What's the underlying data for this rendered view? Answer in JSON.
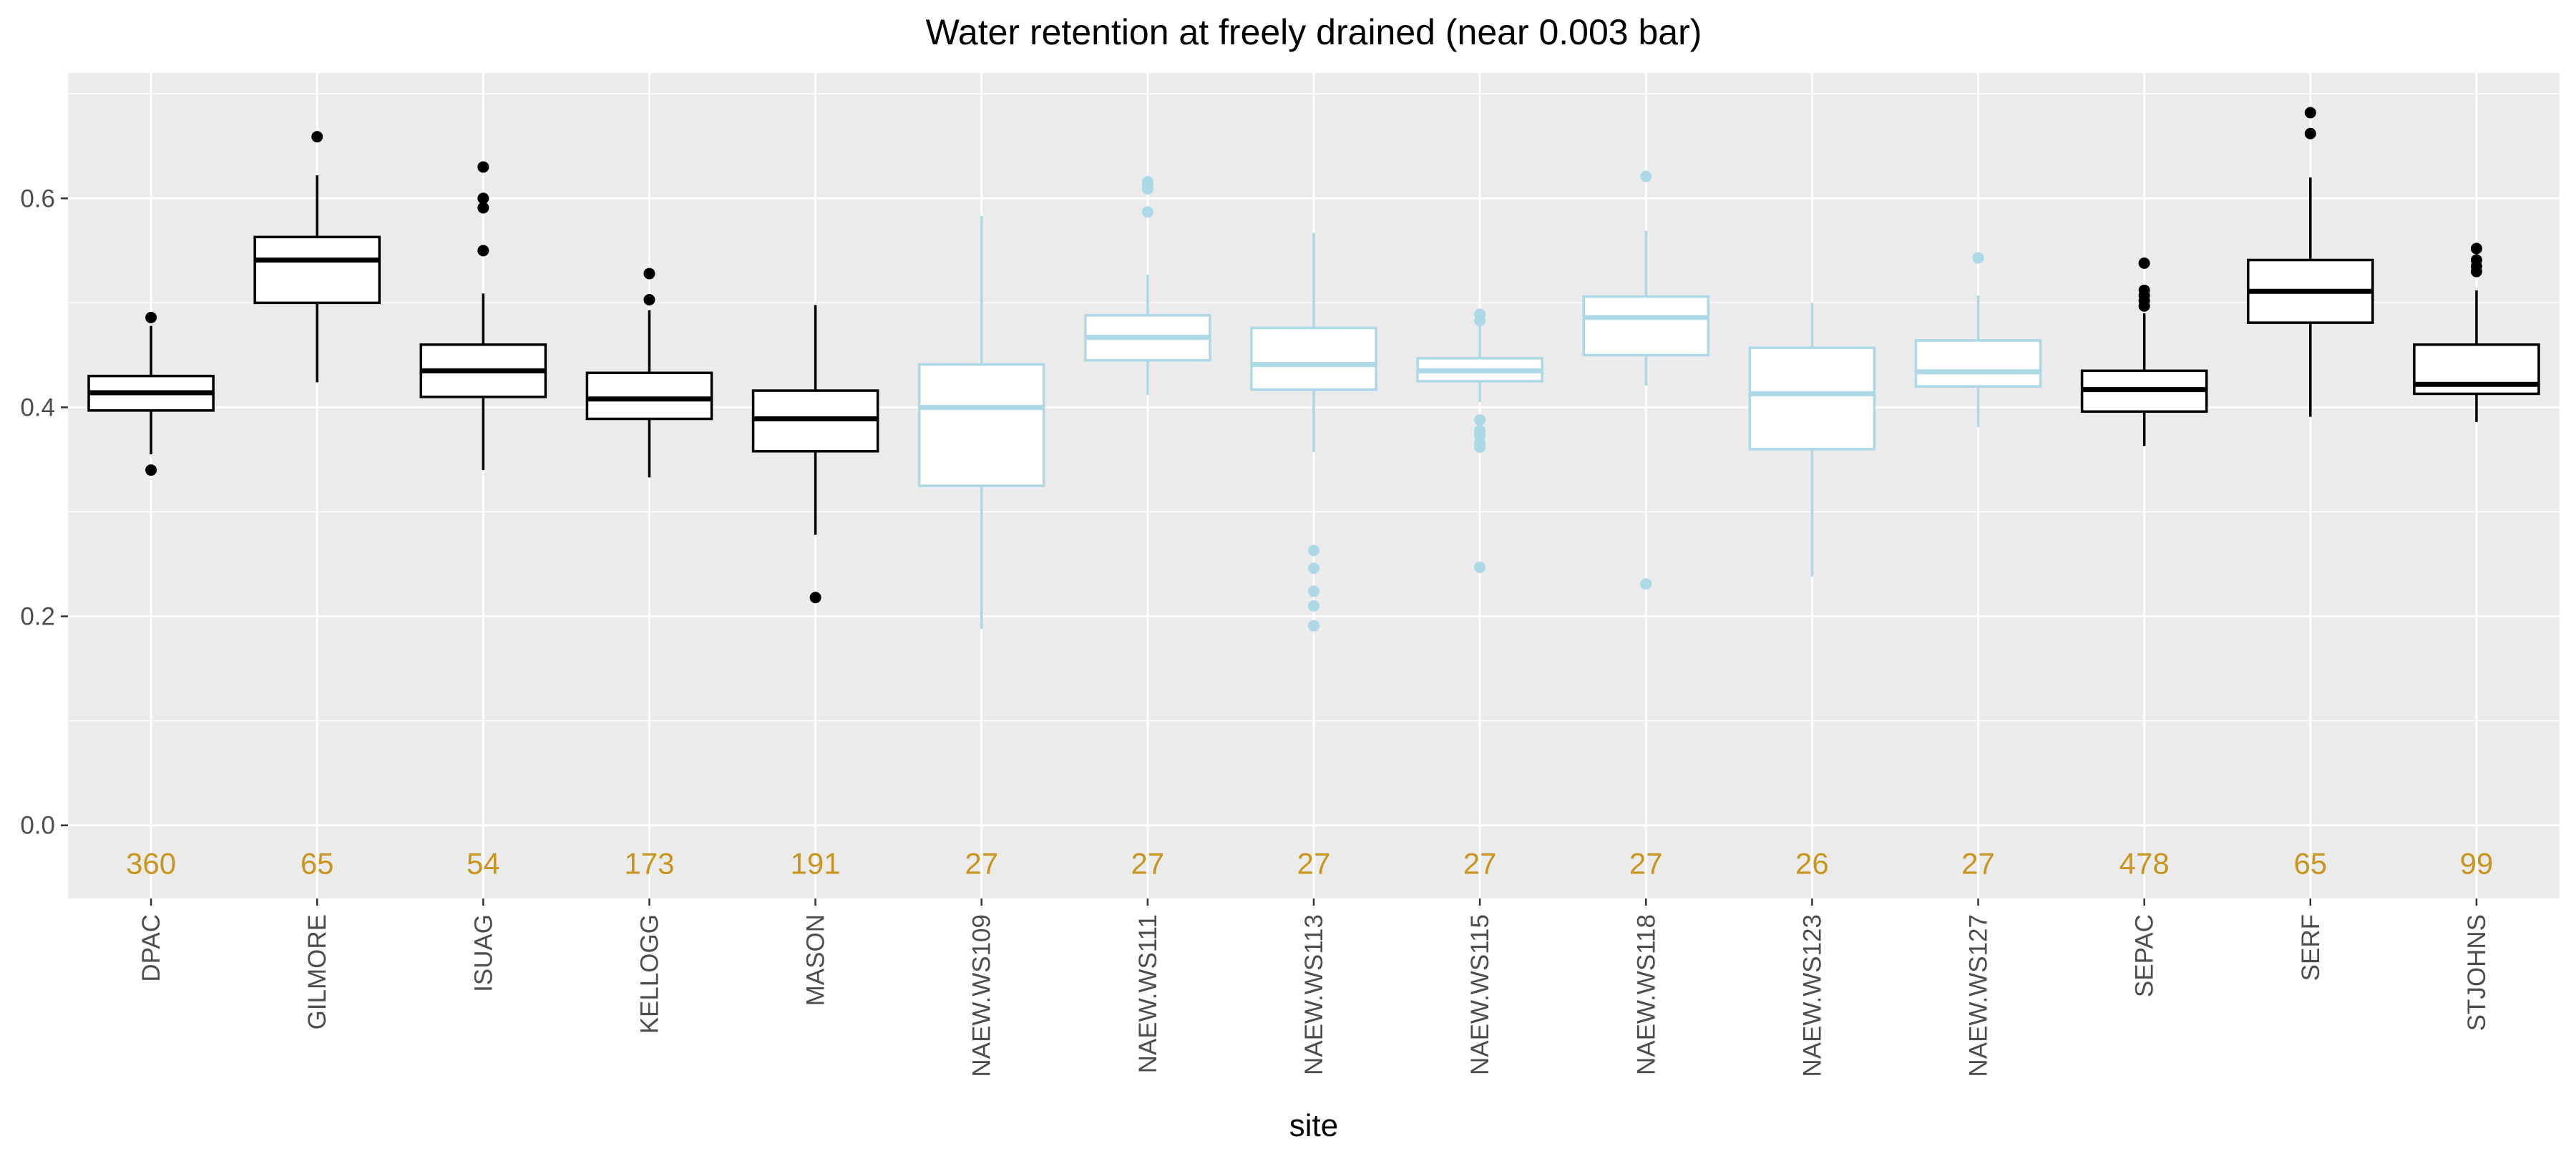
{
  "chart_data": {
    "type": "boxplot",
    "title": "Water retention at freely drained (near 0.003 bar)",
    "xlabel": "site",
    "ylabel": "",
    "ylim": [
      -0.07,
      0.72
    ],
    "yticks": [
      0.0,
      0.2,
      0.4,
      0.6
    ],
    "ytick_labels": [
      "0.0",
      "0.2",
      "0.4",
      "0.6"
    ],
    "grid": true,
    "panel_background": "#ebebeb",
    "gridline_color": "#ffffff",
    "count_color": "#c8961e",
    "count_y": -0.036,
    "groups": {
      "main": "#000000",
      "naew": "#add8e6"
    },
    "categories": [
      "DPAC",
      "GILMORE",
      "ISUAG",
      "KELLOGG",
      "MASON",
      "NAEW.WS109",
      "NAEW.WS111",
      "NAEW.WS113",
      "NAEW.WS115",
      "NAEW.WS118",
      "NAEW.WS123",
      "NAEW.WS127",
      "SEPAC",
      "SERF",
      "STJOHNS"
    ],
    "boxes": [
      {
        "site": "DPAC",
        "group": "main",
        "whisker_low": 0.355,
        "q1": 0.397,
        "median": 0.414,
        "q3": 0.43,
        "whisker_high": 0.478,
        "outliers": [
          0.34,
          0.486
        ],
        "n": "360"
      },
      {
        "site": "GILMORE",
        "group": "main",
        "whisker_low": 0.424,
        "q1": 0.5,
        "median": 0.541,
        "q3": 0.563,
        "whisker_high": 0.622,
        "outliers": [
          0.659
        ],
        "n": "65"
      },
      {
        "site": "ISUAG",
        "group": "main",
        "whisker_low": 0.34,
        "q1": 0.41,
        "median": 0.435,
        "q3": 0.46,
        "whisker_high": 0.509,
        "outliers": [
          0.55,
          0.591,
          0.6,
          0.63
        ],
        "n": "54"
      },
      {
        "site": "KELLOGG",
        "group": "main",
        "whisker_low": 0.333,
        "q1": 0.389,
        "median": 0.408,
        "q3": 0.433,
        "whisker_high": 0.493,
        "outliers": [
          0.503,
          0.528
        ],
        "n": "173"
      },
      {
        "site": "MASON",
        "group": "main",
        "whisker_low": 0.278,
        "q1": 0.358,
        "median": 0.389,
        "q3": 0.416,
        "whisker_high": 0.498,
        "outliers": [
          0.218
        ],
        "n": "191"
      },
      {
        "site": "NAEW.WS109",
        "group": "naew",
        "whisker_low": 0.188,
        "q1": 0.325,
        "median": 0.4,
        "q3": 0.441,
        "whisker_high": 0.583,
        "outliers": [],
        "n": "27"
      },
      {
        "site": "NAEW.WS111",
        "group": "naew",
        "whisker_low": 0.412,
        "q1": 0.445,
        "median": 0.467,
        "q3": 0.488,
        "whisker_high": 0.527,
        "outliers": [
          0.587,
          0.609,
          0.613,
          0.616
        ],
        "n": "27"
      },
      {
        "site": "NAEW.WS113",
        "group": "naew",
        "whisker_low": 0.357,
        "q1": 0.417,
        "median": 0.441,
        "q3": 0.476,
        "whisker_high": 0.567,
        "outliers": [
          0.191,
          0.21,
          0.224,
          0.246,
          0.263
        ],
        "n": "27"
      },
      {
        "site": "NAEW.WS115",
        "group": "naew",
        "whisker_low": 0.405,
        "q1": 0.425,
        "median": 0.435,
        "q3": 0.447,
        "whisker_high": 0.478,
        "outliers": [
          0.247,
          0.362,
          0.366,
          0.373,
          0.378,
          0.388,
          0.483,
          0.489
        ],
        "n": "27"
      },
      {
        "site": "NAEW.WS118",
        "group": "naew",
        "whisker_low": 0.421,
        "q1": 0.45,
        "median": 0.486,
        "q3": 0.506,
        "whisker_high": 0.569,
        "outliers": [
          0.231,
          0.621
        ],
        "n": "27"
      },
      {
        "site": "NAEW.WS123",
        "group": "naew",
        "whisker_low": 0.238,
        "q1": 0.36,
        "median": 0.413,
        "q3": 0.457,
        "whisker_high": 0.5,
        "outliers": [],
        "n": "26"
      },
      {
        "site": "NAEW.WS127",
        "group": "naew",
        "whisker_low": 0.381,
        "q1": 0.42,
        "median": 0.434,
        "q3": 0.464,
        "whisker_high": 0.507,
        "outliers": [
          0.543
        ],
        "n": "27"
      },
      {
        "site": "SEPAC",
        "group": "main",
        "whisker_low": 0.363,
        "q1": 0.396,
        "median": 0.417,
        "q3": 0.435,
        "whisker_high": 0.49,
        "outliers": [
          0.497,
          0.502,
          0.507,
          0.512,
          0.538
        ],
        "n": "478"
      },
      {
        "site": "SERF",
        "group": "main",
        "whisker_low": 0.391,
        "q1": 0.481,
        "median": 0.511,
        "q3": 0.541,
        "whisker_high": 0.62,
        "outliers": [
          0.662,
          0.682
        ],
        "n": "65"
      },
      {
        "site": "STJOHNS",
        "group": "main",
        "whisker_low": 0.386,
        "q1": 0.413,
        "median": 0.422,
        "q3": 0.46,
        "whisker_high": 0.512,
        "outliers": [
          0.53,
          0.535,
          0.541,
          0.552
        ],
        "n": "99"
      }
    ]
  }
}
